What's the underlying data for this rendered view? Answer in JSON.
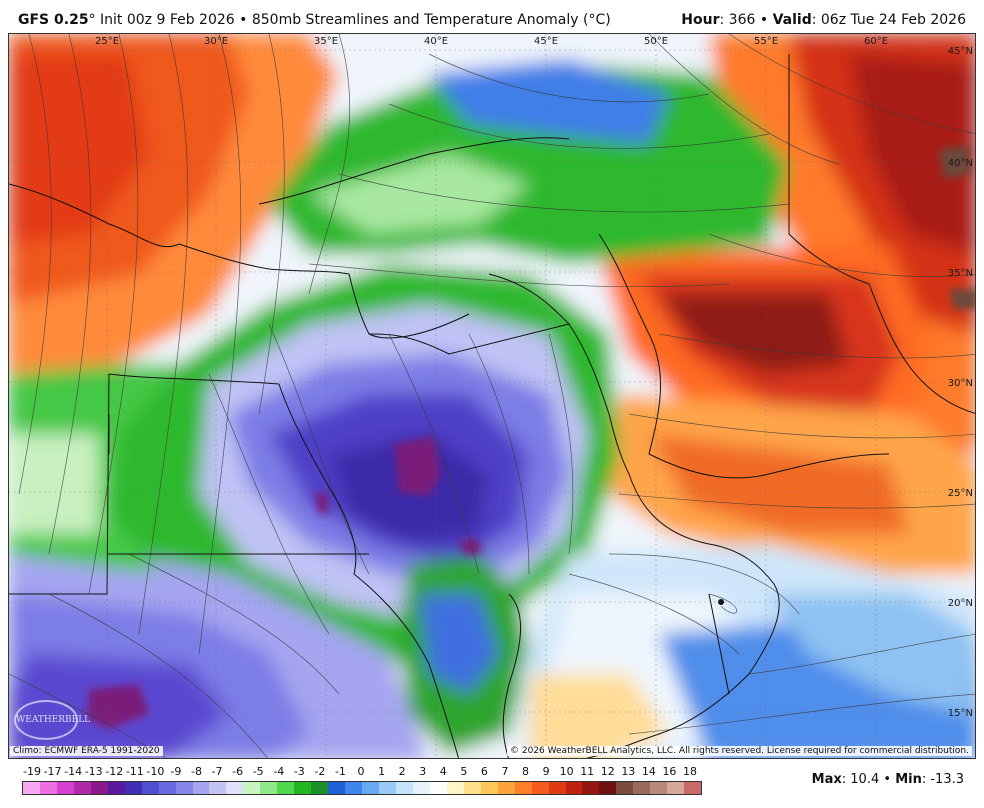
{
  "header": {
    "model": "GFS 0.25",
    "degree_mark": "°",
    "init": "Init 00z 9 Feb 2026",
    "bullet": "•",
    "product": "850mb Streamlines and Temperature Anomaly (°C)",
    "hour_label": "Hour",
    "hour_value": ": 366",
    "valid_label": "Valid",
    "valid_value": ": 06z Tue 24 Feb 2026"
  },
  "map": {
    "lon_labels": [
      "25°E",
      "30°E",
      "35°E",
      "40°E",
      "45°E",
      "50°E",
      "55°E",
      "60°E"
    ],
    "lat_labels": [
      "45°N",
      "40°N",
      "35°N",
      "30°N",
      "25°N",
      "20°N",
      "15°N"
    ],
    "climo": "Climo: ECMWF ERA-5 1991-2020",
    "copyright": "© 2026 WeatherBELL Analytics, LLC. All rights reserved. License required for commercial distribution.",
    "logo_text": "WEATHERBELL"
  },
  "colorbar": {
    "ticks": [
      "-19",
      "-17",
      "-14",
      "-13",
      "-12",
      "-11",
      "-10",
      "-9",
      "-8",
      "-7",
      "-6",
      "-5",
      "-4",
      "-3",
      "-2",
      "-1",
      "0",
      "1",
      "2",
      "3",
      "4",
      "5",
      "6",
      "7",
      "8",
      "9",
      "10",
      "11",
      "12",
      "13",
      "14",
      "16",
      "18"
    ],
    "colors": [
      "#f7a8f0",
      "#ee6fe2",
      "#d63fcf",
      "#b02aa8",
      "#8a1a8a",
      "#5a1aa0",
      "#3f2fb6",
      "#4f4fd0",
      "#6a6ae0",
      "#8585ea",
      "#a5a5f0",
      "#c2c2f5",
      "#e0e0fa",
      "#c8f5c0",
      "#8fe88a",
      "#4fd64f",
      "#21b521",
      "#1a8f2a",
      "#1f5fd8",
      "#3f86ea",
      "#68aaf2",
      "#99c9f6",
      "#c6e2fa",
      "#e8f2fc",
      "#ffffff",
      "#fff6c8",
      "#ffe08a",
      "#ffc75a",
      "#ffa43c",
      "#ff7f2a",
      "#f55a1f",
      "#e03a15",
      "#c02010",
      "#961610",
      "#6e1010",
      "#7a4a3a",
      "#9b6a5a",
      "#b88a7a",
      "#d6aa9a",
      "#c86a6a"
    ]
  },
  "stats": {
    "max_label": "Max",
    "max_value": ": 10.4",
    "sep": "•",
    "min_label": "Min",
    "min_value": ": -13.3"
  }
}
